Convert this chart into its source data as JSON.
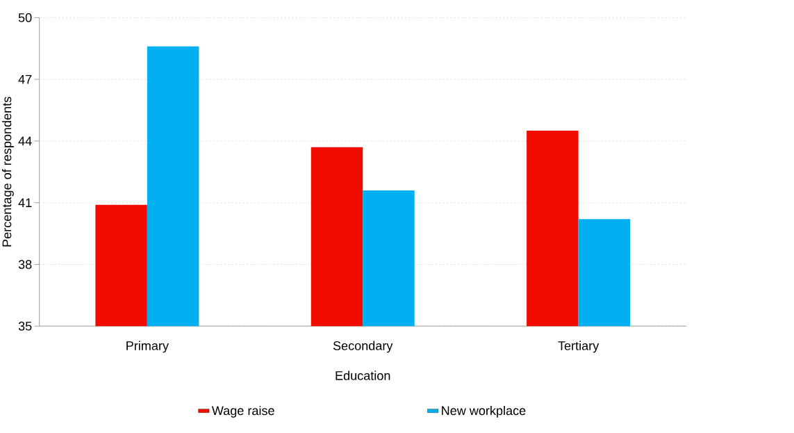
{
  "chart_data": {
    "type": "bar",
    "xlabel": "Education",
    "ylabel": "Percentage of respondents",
    "categories": [
      "Primary",
      "Secondary",
      "Tertiary"
    ],
    "series": [
      {
        "name": "Wage raise",
        "color": "#f20c00",
        "values": [
          40.9,
          43.7,
          44.5
        ]
      },
      {
        "name": "New workplace",
        "color": "#00b0f0",
        "values": [
          48.6,
          41.6,
          40.2
        ]
      }
    ],
    "ylim": [
      35,
      50
    ],
    "yticks": [
      35,
      38,
      41,
      44,
      47,
      50
    ],
    "grid": "y",
    "legend": "bottom"
  }
}
